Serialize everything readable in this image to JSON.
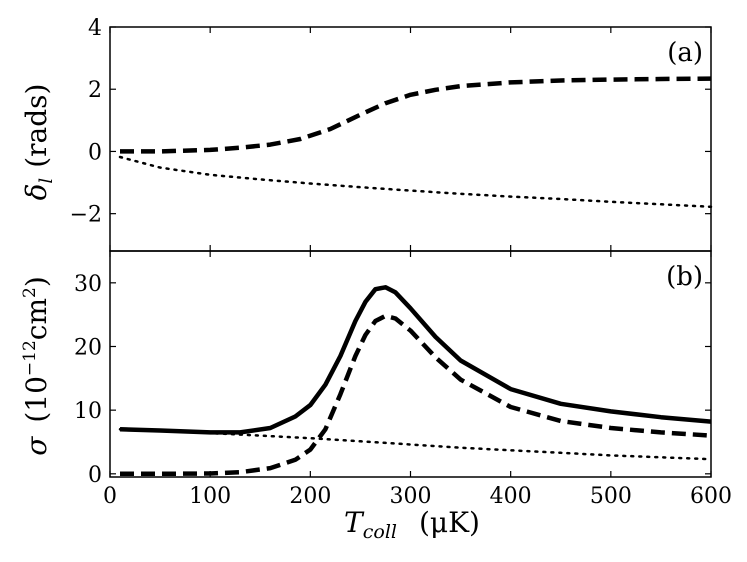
{
  "chart_data": [
    {
      "panel_label": "(a)",
      "type": "line",
      "ylabel": {
        "symbol": "δ",
        "subscript": "l",
        "unit": "(rads)"
      },
      "xlim": [
        0,
        600
      ],
      "ylim": [
        -3.2,
        4
      ],
      "yticks": [
        4,
        2,
        0,
        -2
      ],
      "ytick_labels": [
        "4",
        "2",
        "0",
        "−2"
      ],
      "series": [
        {
          "name": "dashed",
          "style": "dashed",
          "x": [
            10,
            50,
            100,
            130,
            160,
            190,
            220,
            250,
            275,
            300,
            325,
            350,
            400,
            450,
            500,
            550,
            600
          ],
          "y": [
            0.0,
            0.0,
            0.05,
            0.12,
            0.22,
            0.4,
            0.72,
            1.18,
            1.55,
            1.82,
            1.98,
            2.1,
            2.22,
            2.28,
            2.31,
            2.33,
            2.34
          ]
        },
        {
          "name": "dotted",
          "style": "dotted",
          "x": [
            10,
            50,
            100,
            150,
            200,
            250,
            300,
            350,
            400,
            450,
            500,
            550,
            600
          ],
          "y": [
            -0.18,
            -0.52,
            -0.75,
            -0.9,
            -1.03,
            -1.15,
            -1.26,
            -1.36,
            -1.45,
            -1.53,
            -1.62,
            -1.7,
            -1.78
          ]
        }
      ]
    },
    {
      "panel_label": "(b)",
      "type": "line",
      "ylabel": {
        "symbol": "σ",
        "unit_open": "(10",
        "exponent": "−12",
        "unit_mid": "cm",
        "exponent2": "2",
        "unit_close": ")"
      },
      "xlabel": {
        "symbol": "T",
        "subscript": "coll",
        "unit": "(μK)"
      },
      "xlim": [
        0,
        600
      ],
      "ylim": [
        -0.5,
        35
      ],
      "xticks": [
        0,
        100,
        200,
        300,
        400,
        500,
        600
      ],
      "xtick_labels": [
        "0",
        "100",
        "200",
        "300",
        "400",
        "500",
        "600"
      ],
      "yticks": [
        30,
        20,
        10,
        0
      ],
      "ytick_labels": [
        "30",
        "20",
        "10",
        "0"
      ],
      "series": [
        {
          "name": "solid",
          "style": "solid",
          "x": [
            10,
            50,
            100,
            130,
            160,
            185,
            200,
            215,
            230,
            245,
            255,
            265,
            275,
            285,
            300,
            325,
            350,
            400,
            450,
            500,
            550,
            600
          ],
          "y": [
            7.0,
            6.8,
            6.5,
            6.5,
            7.2,
            9.0,
            10.8,
            14.0,
            18.5,
            24.0,
            27.0,
            29.0,
            29.3,
            28.5,
            26.0,
            21.5,
            17.8,
            13.3,
            11.0,
            9.8,
            8.9,
            8.2
          ]
        },
        {
          "name": "dashed",
          "style": "dashed",
          "x": [
            10,
            50,
            100,
            130,
            160,
            185,
            200,
            215,
            230,
            245,
            255,
            265,
            275,
            285,
            300,
            325,
            350,
            400,
            450,
            500,
            550,
            600
          ],
          "y": [
            0.0,
            0.0,
            0.05,
            0.25,
            0.9,
            2.2,
            3.8,
            7.0,
            12.5,
            18.5,
            21.8,
            24.0,
            24.8,
            24.4,
            22.5,
            18.3,
            14.8,
            10.5,
            8.3,
            7.2,
            6.5,
            6.0
          ]
        },
        {
          "name": "dotted",
          "style": "dotted",
          "x": [
            10,
            50,
            100,
            150,
            200,
            250,
            300,
            350,
            400,
            450,
            500,
            550,
            600
          ],
          "y": [
            7.0,
            6.8,
            6.4,
            6.0,
            5.6,
            5.1,
            4.6,
            4.1,
            3.7,
            3.3,
            2.9,
            2.6,
            2.3
          ]
        }
      ]
    }
  ]
}
